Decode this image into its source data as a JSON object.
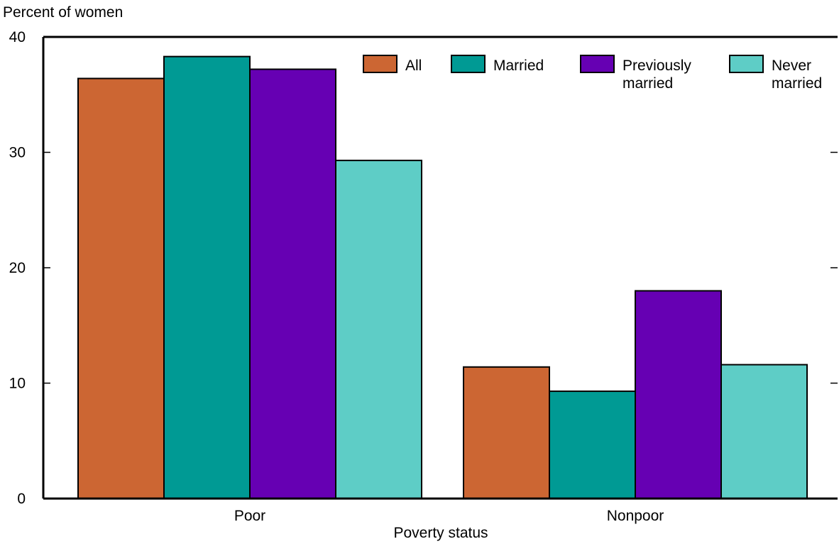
{
  "chart_data": {
    "type": "bar",
    "ylabel": "Percent of women",
    "xlabel": "Poverty status",
    "categories": [
      "Poor",
      "Nonpoor"
    ],
    "ylim": [
      0,
      40
    ],
    "yticks": [
      0,
      10,
      20,
      30,
      40
    ],
    "grid": false,
    "legend_position": "top-right",
    "series": [
      {
        "name": "All",
        "name_lines": [
          "All"
        ],
        "color": "#cc6633",
        "values": [
          36.4,
          11.4
        ]
      },
      {
        "name": "Married",
        "name_lines": [
          "Married"
        ],
        "color": "#009a94",
        "values": [
          38.3,
          9.3
        ]
      },
      {
        "name": "Previously married",
        "name_lines": [
          "Previously",
          "married"
        ],
        "color": "#6600b3",
        "values": [
          37.2,
          18.0
        ]
      },
      {
        "name": "Never married",
        "name_lines": [
          "Never",
          "married"
        ],
        "color": "#5ecdc6",
        "values": [
          29.3,
          11.6
        ]
      }
    ]
  }
}
